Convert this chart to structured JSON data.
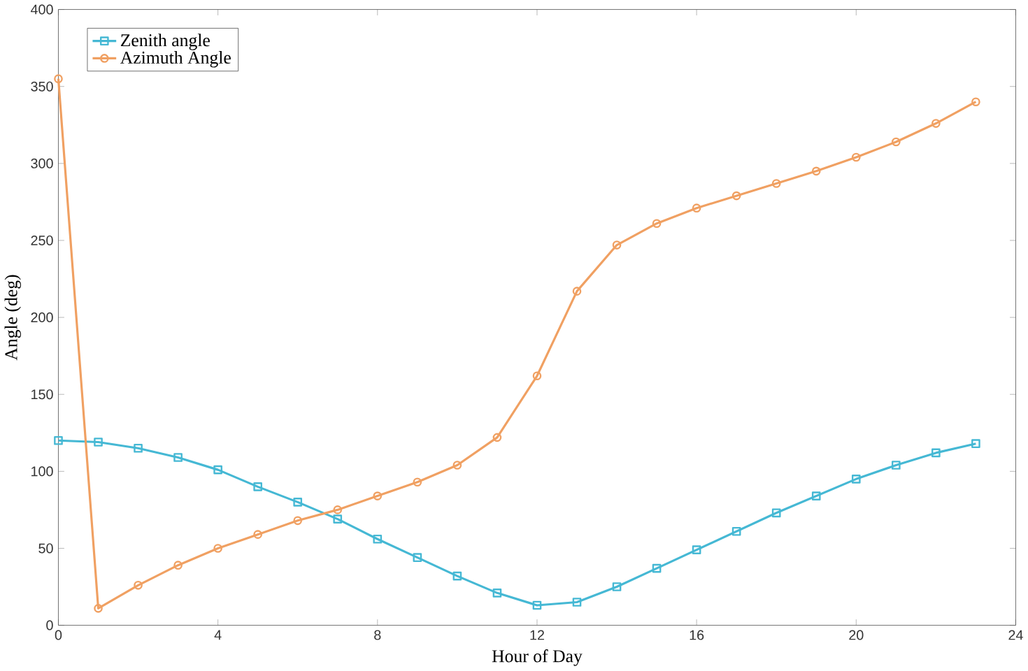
{
  "chart_data": {
    "type": "line",
    "xlabel": "Hour of Day",
    "ylabel": "Angle (deg)",
    "x": [
      0,
      1,
      2,
      3,
      4,
      5,
      6,
      7,
      8,
      9,
      10,
      11,
      12,
      13,
      14,
      15,
      16,
      17,
      18,
      19,
      20,
      21,
      22,
      23
    ],
    "series": [
      {
        "name": "Zenith angle",
        "color": "#45b8d4",
        "marker": "square",
        "values": [
          120,
          119,
          115,
          109,
          101,
          90,
          80,
          69,
          56,
          44,
          32,
          21,
          13,
          15,
          25,
          37,
          49,
          61,
          73,
          84,
          95,
          104,
          112,
          118
        ]
      },
      {
        "name": "Azimuth Angle",
        "color": "#f0a062",
        "marker": "circle",
        "values": [
          355,
          11,
          26,
          39,
          50,
          59,
          68,
          75,
          84,
          93,
          104,
          122,
          162,
          217,
          247,
          261,
          271,
          279,
          287,
          295,
          304,
          314,
          326,
          340
        ]
      }
    ],
    "xlim": [
      0,
      24
    ],
    "xticks": [
      0,
      4,
      8,
      12,
      16,
      20,
      24
    ],
    "ylim": [
      0,
      400
    ],
    "yticks": [
      0,
      50,
      100,
      150,
      200,
      250,
      300,
      350,
      400
    ],
    "grid": false,
    "legend": "top left",
    "line_style": "solid"
  }
}
